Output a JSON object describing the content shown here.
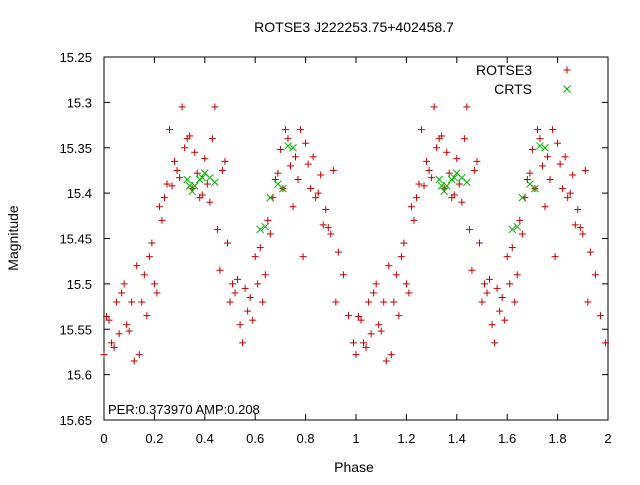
{
  "chart_data": {
    "type": "scatter",
    "title": "ROTSE3 J222253.75+402458.7",
    "xlabel": "Phase",
    "ylabel": "Magnitude",
    "xlim": [
      0,
      2
    ],
    "ylim": [
      15.25,
      15.65
    ],
    "y_inverted": true,
    "x_ticks": [
      "0",
      "0.2",
      "0.4",
      "0.6",
      "0.8",
      "1",
      "1.2",
      "1.4",
      "1.6",
      "1.8",
      "2"
    ],
    "y_ticks": [
      "15.25",
      "15.3",
      "15.35",
      "15.4",
      "15.45",
      "15.5",
      "15.55",
      "15.6",
      "15.65"
    ],
    "annotation": "PER:0.373970 AMP:0.208",
    "legend_position": "top-right",
    "series": [
      {
        "name": "ROTSE3",
        "marker": "plus",
        "color": "#c00000",
        "points": [
          [
            0.0,
            15.578
          ],
          [
            0.01,
            15.536
          ],
          [
            0.02,
            15.54
          ],
          [
            0.03,
            15.565
          ],
          [
            0.04,
            15.57
          ],
          [
            0.05,
            15.52
          ],
          [
            0.06,
            15.555
          ],
          [
            0.07,
            15.51
          ],
          [
            0.08,
            15.5
          ],
          [
            0.09,
            15.545
          ],
          [
            0.1,
            15.552
          ],
          [
            0.11,
            15.52
          ],
          [
            0.12,
            15.585
          ],
          [
            0.13,
            15.48
          ],
          [
            0.14,
            15.578
          ],
          [
            0.15,
            15.52
          ],
          [
            0.16,
            15.49
          ],
          [
            0.17,
            15.535
          ],
          [
            0.18,
            15.47
          ],
          [
            0.19,
            15.455
          ],
          [
            0.2,
            15.5
          ],
          [
            0.21,
            15.51
          ],
          [
            0.22,
            15.415
          ],
          [
            0.23,
            15.43
          ],
          [
            0.24,
            15.405
          ],
          [
            0.25,
            15.39
          ],
          [
            0.26,
            15.33
          ],
          [
            0.27,
            15.392
          ],
          [
            0.28,
            15.365
          ],
          [
            0.29,
            15.375
          ],
          [
            0.3,
            15.383
          ],
          [
            0.31,
            15.305
          ],
          [
            0.32,
            15.35
          ],
          [
            0.33,
            15.34
          ],
          [
            0.34,
            15.337
          ],
          [
            0.35,
            15.395
          ],
          [
            0.36,
            15.355
          ],
          [
            0.37,
            15.378
          ],
          [
            0.38,
            15.405
          ],
          [
            0.39,
            15.402
          ],
          [
            0.4,
            15.362
          ],
          [
            0.41,
            15.39
          ],
          [
            0.42,
            15.41
          ],
          [
            0.43,
            15.34
          ],
          [
            0.44,
            15.305
          ],
          [
            0.45,
            15.44
          ],
          [
            0.46,
            15.485
          ],
          [
            0.47,
            15.375
          ],
          [
            0.48,
            15.365
          ],
          [
            0.49,
            15.455
          ],
          [
            0.5,
            15.52
          ],
          [
            0.51,
            15.5
          ],
          [
            0.52,
            15.51
          ],
          [
            0.53,
            15.495
          ],
          [
            0.54,
            15.545
          ],
          [
            0.55,
            15.565
          ],
          [
            0.56,
            15.505
          ],
          [
            0.57,
            15.53
          ],
          [
            0.58,
            15.515
          ],
          [
            0.59,
            15.54
          ],
          [
            0.6,
            15.47
          ],
          [
            0.61,
            15.5
          ],
          [
            0.62,
            15.46
          ],
          [
            0.63,
            15.52
          ],
          [
            0.64,
            15.49
          ],
          [
            0.65,
            15.43
          ],
          [
            0.66,
            15.445
          ],
          [
            0.67,
            15.405
          ],
          [
            0.68,
            15.385
          ],
          [
            0.69,
            15.378
          ],
          [
            0.7,
            15.352
          ],
          [
            0.71,
            15.395
          ],
          [
            0.72,
            15.33
          ],
          [
            0.73,
            15.34
          ],
          [
            0.74,
            15.37
          ],
          [
            0.75,
            15.415
          ],
          [
            0.76,
            15.36
          ],
          [
            0.77,
            15.385
          ],
          [
            0.78,
            15.33
          ],
          [
            0.79,
            15.47
          ],
          [
            0.8,
            15.345
          ],
          [
            0.81,
            15.368
          ],
          [
            0.82,
            15.395
          ],
          [
            0.83,
            15.36
          ],
          [
            0.84,
            15.405
          ],
          [
            0.85,
            15.4
          ],
          [
            0.86,
            15.38
          ],
          [
            0.87,
            15.435
          ],
          [
            0.88,
            15.418
          ],
          [
            0.89,
            15.438
          ],
          [
            0.9,
            15.445
          ],
          [
            0.91,
            15.375
          ],
          [
            0.92,
            15.52
          ],
          [
            0.93,
            15.465
          ],
          [
            0.95,
            15.49
          ],
          [
            0.97,
            15.535
          ],
          [
            0.99,
            15.565
          ]
        ]
      },
      {
        "name": "CRTS",
        "marker": "cross",
        "color": "#00b000",
        "points": [
          [
            0.33,
            15.385
          ],
          [
            0.34,
            15.392
          ],
          [
            0.35,
            15.398
          ],
          [
            0.36,
            15.392
          ],
          [
            0.38,
            15.385
          ],
          [
            0.39,
            15.383
          ],
          [
            0.4,
            15.378
          ],
          [
            0.42,
            15.383
          ],
          [
            0.44,
            15.388
          ],
          [
            0.62,
            15.44
          ],
          [
            0.64,
            15.437
          ],
          [
            0.66,
            15.405
          ],
          [
            0.69,
            15.39
          ],
          [
            0.71,
            15.395
          ],
          [
            0.73,
            15.348
          ],
          [
            0.75,
            15.35
          ]
        ]
      }
    ]
  }
}
